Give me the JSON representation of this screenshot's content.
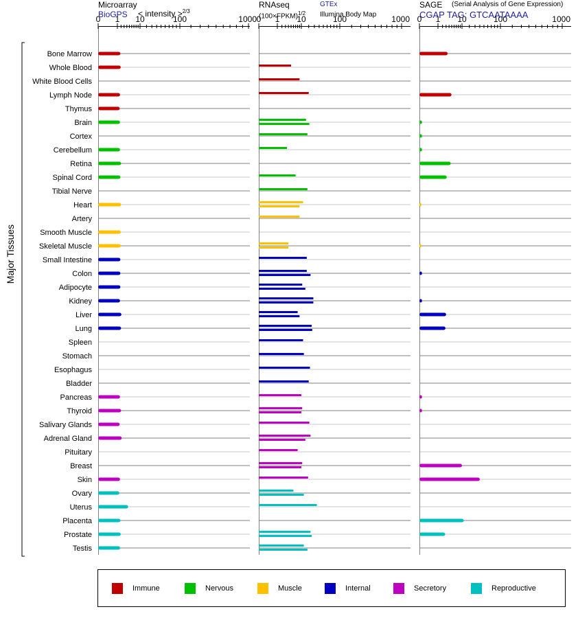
{
  "headers": {
    "microarray": {
      "title": "Microarray",
      "source": "BioGPS",
      "scale_label": "< intensity >",
      "scale_exp": "2/3"
    },
    "rnaseq": {
      "title": "RNAseq",
      "unit": "(100×FPKM)",
      "unit_exp": "1/2",
      "source": "GTEx",
      "source2": "Illumina Body Map"
    },
    "sage": {
      "title": "SAGE",
      "subtitle": "(Serial Analysis of Gene Expression)",
      "tag": "CGAP TAG: GTCAATAAAA"
    }
  },
  "y_axis_label": "Major Tissues",
  "colors": {
    "Immune": "#c00000",
    "Nervous": "#00c000",
    "Muscle": "#ffc000",
    "Internal": "#0000c0",
    "Secretory": "#c000c0",
    "Reproductive": "#00c0c0"
  },
  "legend": [
    {
      "label": "Immune",
      "color": "#c00000"
    },
    {
      "label": "Nervous",
      "color": "#00c000"
    },
    {
      "label": "Muscle",
      "color": "#ffc000"
    },
    {
      "label": "Internal",
      "color": "#0000c0"
    },
    {
      "label": "Secretory",
      "color": "#c000c0"
    },
    {
      "label": "Reproductive",
      "color": "#00c0c0"
    }
  ],
  "chart_data": {
    "type": "bar",
    "axis_scale": "power 2/3 (microarray), power 1/2 (RNAseq, SAGE)",
    "ticks": [
      "0",
      "1",
      "10",
      "100",
      "1000"
    ],
    "xlim": [
      0,
      1000
    ],
    "panels": [
      "Microarray",
      "RNAseq",
      "SAGE"
    ],
    "tissues": [
      {
        "name": "Bone Marrow",
        "group": "Immune",
        "microarray": 1.8,
        "rnaseq": [],
        "sage": [
          3.5
        ]
      },
      {
        "name": "Whole Blood",
        "group": "Immune",
        "microarray": 1.9,
        "rnaseq": [
          5
        ],
        "sage": []
      },
      {
        "name": "White Blood Cells",
        "group": "Immune",
        "microarray": null,
        "rnaseq": [
          9
        ],
        "sage": []
      },
      {
        "name": "Lymph Node",
        "group": "Immune",
        "microarray": 1.7,
        "rnaseq": [
          20
        ],
        "sage": [
          4.9
        ]
      },
      {
        "name": "Thymus",
        "group": "Immune",
        "microarray": 1.6,
        "rnaseq": [],
        "sage": []
      },
      {
        "name": "Brain",
        "group": "Nervous",
        "microarray": 1.7,
        "rnaseq": [
          16,
          21
        ],
        "sage": [
          0.02
        ]
      },
      {
        "name": "Cortex",
        "group": "Nervous",
        "microarray": null,
        "rnaseq": [
          18
        ],
        "sage": [
          0.02
        ]
      },
      {
        "name": "Cerebellum",
        "group": "Nervous",
        "microarray": 1.7,
        "rnaseq": [
          3.5
        ],
        "sage": [
          0.02
        ]
      },
      {
        "name": "Retina",
        "group": "Nervous",
        "microarray": 2,
        "rnaseq": [],
        "sage": [
          4.6
        ]
      },
      {
        "name": "Spinal Cord",
        "group": "Nervous",
        "microarray": 1.8,
        "rnaseq": [
          7
        ],
        "sage": [
          3.2
        ]
      },
      {
        "name": "Tibial Nerve",
        "group": "Nervous",
        "microarray": null,
        "rnaseq": [
          18
        ],
        "sage": []
      },
      {
        "name": "Heart",
        "group": "Muscle",
        "microarray": 2,
        "rnaseq": [
          12,
          9
        ],
        "sage": [
          0.01
        ]
      },
      {
        "name": "Artery",
        "group": "Muscle",
        "microarray": null,
        "rnaseq": [
          9
        ],
        "sage": []
      },
      {
        "name": "Smooth Muscle",
        "group": "Muscle",
        "microarray": 1.9,
        "rnaseq": [],
        "sage": []
      },
      {
        "name": "Skeletal Muscle",
        "group": "Muscle",
        "microarray": 1.9,
        "rnaseq": [
          4,
          4
        ],
        "sage": [
          0.01
        ]
      },
      {
        "name": "Small Intestine",
        "group": "Internal",
        "microarray": 1.8,
        "rnaseq": [
          17
        ],
        "sage": []
      },
      {
        "name": "Colon",
        "group": "Internal",
        "microarray": 1.8,
        "rnaseq": [
          17,
          23
        ],
        "sage": [
          0.02
        ]
      },
      {
        "name": "Adipocyte",
        "group": "Internal",
        "microarray": 1.8,
        "rnaseq": [
          11,
          15
        ],
        "sage": []
      },
      {
        "name": "Kidney",
        "group": "Internal",
        "microarray": 1.7,
        "rnaseq": [
          28,
          28
        ],
        "sage": [
          0.02
        ]
      },
      {
        "name": "Liver",
        "group": "Internal",
        "microarray": 2.1,
        "rnaseq": [
          8,
          9
        ],
        "sage": [
          3
        ]
      },
      {
        "name": "Lung",
        "group": "Internal",
        "microarray": 2,
        "rnaseq": [
          25,
          26
        ],
        "sage": [
          2.8
        ]
      },
      {
        "name": "Spleen",
        "group": "Internal",
        "microarray": null,
        "rnaseq": [
          12
        ],
        "sage": []
      },
      {
        "name": "Stomach",
        "group": "Internal",
        "microarray": null,
        "rnaseq": [
          13
        ],
        "sage": []
      },
      {
        "name": "Esophagus",
        "group": "Internal",
        "microarray": null,
        "rnaseq": [
          22
        ],
        "sage": []
      },
      {
        "name": "Bladder",
        "group": "Internal",
        "microarray": null,
        "rnaseq": [
          20
        ],
        "sage": []
      },
      {
        "name": "Pancreas",
        "group": "Secretory",
        "microarray": 1.7,
        "rnaseq": [
          10
        ],
        "sage": [
          0.02
        ]
      },
      {
        "name": "Thyroid",
        "group": "Secretory",
        "microarray": 2,
        "rnaseq": [
          11,
          10
        ],
        "sage": [
          0.02
        ]
      },
      {
        "name": "Salivary Glands",
        "group": "Secretory",
        "microarray": 1.6,
        "rnaseq": [
          21
        ],
        "sage": []
      },
      {
        "name": "Adrenal Gland",
        "group": "Secretory",
        "microarray": 2.2,
        "rnaseq": [
          23,
          15
        ],
        "sage": []
      },
      {
        "name": "Pituitary",
        "group": "Secretory",
        "microarray": null,
        "rnaseq": [
          8
        ],
        "sage": []
      },
      {
        "name": "Breast",
        "group": "Secretory",
        "microarray": null,
        "rnaseq": [
          11,
          10
        ],
        "sage": [
          10
        ]
      },
      {
        "name": "Skin",
        "group": "Secretory",
        "microarray": 1.7,
        "rnaseq": [
          19
        ],
        "sage": [
          40
        ]
      },
      {
        "name": "Ovary",
        "group": "Reproductive",
        "microarray": 1.5,
        "rnaseq": [
          6,
          13
        ],
        "sage": []
      },
      {
        "name": "Uterus",
        "group": "Reproductive",
        "microarray": 4.5,
        "rnaseq": [
          35
        ],
        "sage": []
      },
      {
        "name": "Placenta",
        "group": "Reproductive",
        "microarray": 1.8,
        "rnaseq": [],
        "sage": [
          12
        ]
      },
      {
        "name": "Prostate",
        "group": "Reproductive",
        "microarray": 1.9,
        "rnaseq": [
          23,
          25
        ],
        "sage": [
          2.7
        ]
      },
      {
        "name": "Testis",
        "group": "Reproductive",
        "microarray": 1.7,
        "rnaseq": [
          13,
          18
        ],
        "sage": []
      }
    ]
  }
}
